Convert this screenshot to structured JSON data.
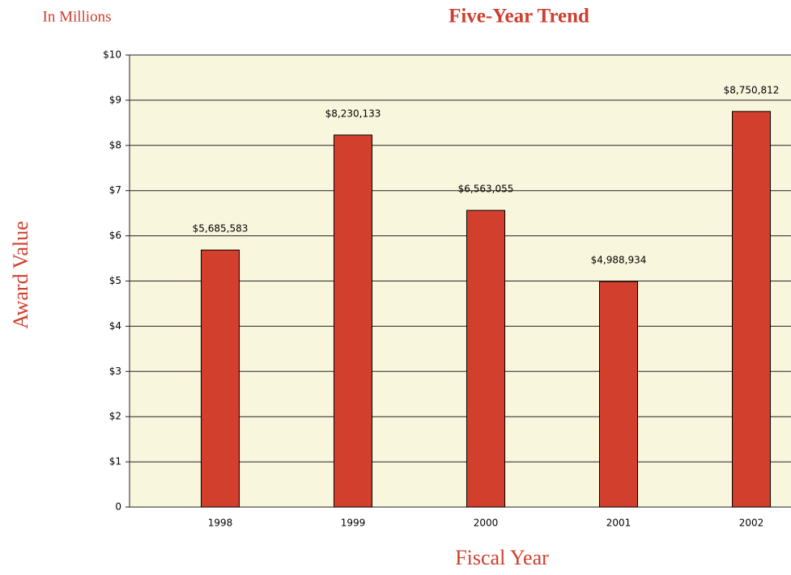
{
  "chart_data": {
    "type": "bar",
    "title": "Five-Year Trend",
    "subtitle": "In Millions",
    "y_label": "Award Value",
    "x_label": "Fiscal Year",
    "categories": [
      "1998",
      "1999",
      "2000",
      "2001",
      "2002"
    ],
    "values": [
      5.685583,
      8.230133,
      6.563055,
      4.988934,
      8.750812
    ],
    "value_labels": [
      "$5,685,583",
      "$8,230,133",
      "$6,563,055",
      "$4,988,934",
      "$8,750,812"
    ],
    "color": "#d2402d",
    "ylim": [
      0,
      10
    ],
    "yticks": [
      0,
      {
        "value": 1,
        "label": "$1"
      },
      {
        "value": 2,
        "label": "$2"
      },
      {
        "value": 3,
        "label": "$3"
      },
      {
        "value": 4,
        "label": "$4"
      },
      {
        "value": 5,
        "label": "$5"
      },
      {
        "value": 6,
        "label": "$6"
      },
      {
        "value": 7,
        "label": "$7"
      },
      {
        "value": 8,
        "label": "$8"
      },
      {
        "value": 9,
        "label": "$9"
      },
      {
        "value": 10,
        "label": "$10"
      }
    ],
    "grid": true
  }
}
